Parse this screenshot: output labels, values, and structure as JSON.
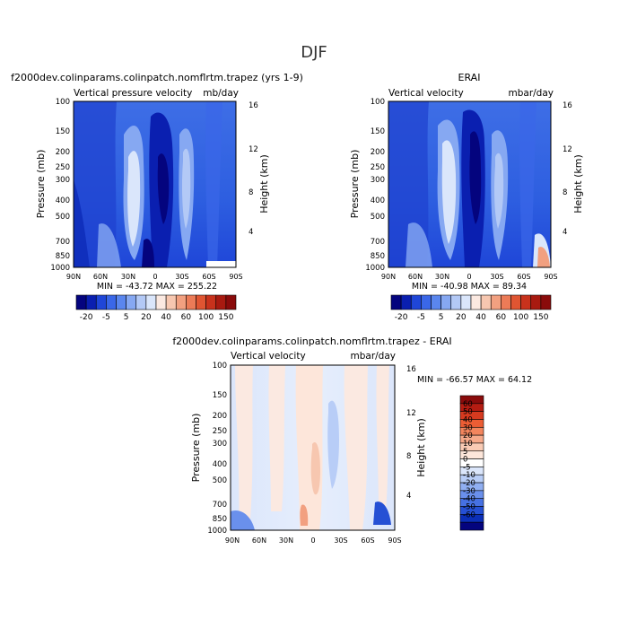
{
  "figure_title": "DJF",
  "chart_data": [
    {
      "type": "heatmap",
      "title": "f2000dev.colinparams.colinpatch.nomflrtm.trapez (yrs 1-9)",
      "subtitle_left": "Vertical pressure velocity",
      "subtitle_right": "mb/day",
      "ylabel": "Pressure (mb)",
      "y2label": "Height (km)",
      "xticks": [
        "90N",
        "60N",
        "30N",
        "0",
        "30S",
        "60S",
        "90S"
      ],
      "yticks": [
        "100",
        "150",
        "200",
        "250",
        "300",
        "400",
        "500",
        "700",
        "850",
        "1000"
      ],
      "y2ticks": [
        "16",
        "12",
        "8",
        "4"
      ],
      "minmax": "MIN = -43.72   MAX = 255.22",
      "min": -43.72,
      "max": 255.22
    },
    {
      "type": "heatmap",
      "title": "ERAI",
      "subtitle_left": "Vertical velocity",
      "subtitle_right": "mbar/day",
      "ylabel": "Pressure (mb)",
      "y2label": "Height (km)",
      "xticks": [
        "90N",
        "60N",
        "30N",
        "0",
        "30S",
        "60S",
        "90S"
      ],
      "yticks": [
        "100",
        "150",
        "200",
        "250",
        "300",
        "400",
        "500",
        "700",
        "850",
        "1000"
      ],
      "y2ticks": [
        "16",
        "12",
        "8",
        "4"
      ],
      "minmax": "MIN = -40.98   MAX =  89.34",
      "min": -40.98,
      "max": 89.34
    },
    {
      "type": "heatmap",
      "title": "f2000dev.colinparams.colinpatch.nomflrtm.trapez - ERAI",
      "subtitle_left": "Vertical velocity",
      "subtitle_right": "mbar/day",
      "ylabel": "Pressure (mb)",
      "y2label": "Height (km)",
      "xticks": [
        "90N",
        "60N",
        "30N",
        "0",
        "30S",
        "60S",
        "90S"
      ],
      "yticks": [
        "100",
        "150",
        "200",
        "250",
        "300",
        "400",
        "500",
        "700",
        "850",
        "1000"
      ],
      "y2ticks": [
        "16",
        "12",
        "8",
        "4"
      ],
      "minmax": "MIN = -66.57   MAX =  64.12",
      "min": -66.57,
      "max": 64.12
    }
  ],
  "colorbar_main": {
    "labels": [
      "-20",
      "-5",
      "5",
      "20",
      "40",
      "60",
      "100",
      "150"
    ],
    "colors": [
      "#04047e",
      "#0a1fb0",
      "#1f46d8",
      "#3a67e8",
      "#5a86ee",
      "#86a8f2",
      "#b3c9f6",
      "#dae6fb",
      "#fbe9e1",
      "#f7c7b0",
      "#f2a080",
      "#ec7b57",
      "#e05532",
      "#c8321c",
      "#a81a10",
      "#8a0b0b"
    ]
  },
  "colorbar_diff": {
    "labels": [
      "60",
      "50",
      "40",
      "30",
      "20",
      "10",
      "5",
      "0",
      "-5",
      "-10",
      "-20",
      "-30",
      "-40",
      "-50",
      "-60"
    ],
    "colors": [
      "#8a0b0b",
      "#b51c12",
      "#d63a1f",
      "#ec5d34",
      "#f3855d",
      "#f6a98a",
      "#f9cbb5",
      "#fde6da",
      "#ffffff",
      "#dbe6fb",
      "#b8cdf7",
      "#90aff2",
      "#6a90ec",
      "#4671e3",
      "#2550d4",
      "#0b2fb8",
      "#04047e"
    ]
  }
}
